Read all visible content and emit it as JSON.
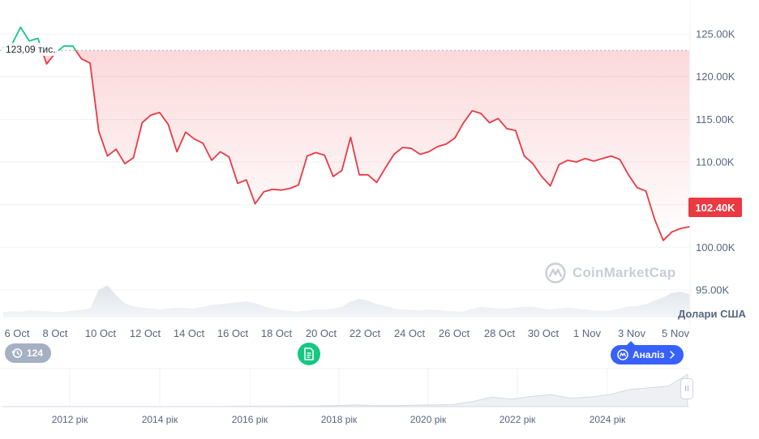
{
  "chart_data": {
    "type": "line",
    "title": "",
    "xlabel": "",
    "ylabel": "Долари США",
    "ylim": [
      91000,
      129000
    ],
    "y_ticks": [
      "125.00K",
      "120.00K",
      "115.00K",
      "110.00K",
      "105.00K",
      "100.00K",
      "95.00K"
    ],
    "y_tick_values": [
      125000,
      120000,
      115000,
      110000,
      105000,
      100000,
      95000
    ],
    "x_ticks": [
      "6 Oct",
      "8 Oct",
      "10 Oct",
      "12 Oct",
      "14 Oct",
      "16 Oct",
      "18 Oct",
      "20 Oct",
      "22 Oct",
      "24 Oct",
      "26 Oct",
      "28 Oct",
      "30 Oct",
      "1 Nov",
      "3 Nov",
      "5 Nov"
    ],
    "reference_value": 123090,
    "reference_label": "123,09 тис.",
    "current_price_label": "102.40K",
    "series": [
      {
        "values": [
          123400,
          123800,
          125800,
          124200,
          124500,
          121500,
          122800,
          123600,
          123600,
          122100,
          121600,
          113600,
          110700,
          111500,
          109800,
          110500,
          114600,
          115500,
          115800,
          114400,
          111200,
          113500,
          112700,
          112200,
          110200,
          111200,
          110600,
          107500,
          107900,
          105100,
          106500,
          106800,
          106700,
          106900,
          107300,
          110700,
          111100,
          110800,
          108300,
          109000,
          112900,
          108500,
          108500,
          107600,
          109300,
          110900,
          111700,
          111600,
          110900,
          111200,
          111800,
          112100,
          112800,
          114600,
          116000,
          115700,
          114600,
          115100,
          113900,
          113700,
          110700,
          109800,
          108300,
          107200,
          109700,
          110200,
          110000,
          110400,
          110100,
          110400,
          110700,
          110300,
          108500,
          107000,
          106600,
          103300,
          100800,
          101800,
          102200,
          102400
        ]
      }
    ],
    "volume": [
      0.12,
      0.14,
      0.13,
      0.16,
      0.15,
      0.14,
      0.12,
      0.13,
      0.15,
      0.17,
      0.2,
      0.62,
      0.72,
      0.5,
      0.32,
      0.25,
      0.22,
      0.2,
      0.18,
      0.2,
      0.22,
      0.21,
      0.2,
      0.24,
      0.28,
      0.3,
      0.32,
      0.34,
      0.36,
      0.32,
      0.25,
      0.2,
      0.17,
      0.15,
      0.13,
      0.16,
      0.18,
      0.18,
      0.2,
      0.24,
      0.36,
      0.42,
      0.38,
      0.3,
      0.26,
      0.2,
      0.18,
      0.17,
      0.16,
      0.18,
      0.17,
      0.15,
      0.14,
      0.13,
      0.2,
      0.24,
      0.22,
      0.2,
      0.2,
      0.22,
      0.24,
      0.24,
      0.2,
      0.18,
      0.2,
      0.22,
      0.2,
      0.18,
      0.16,
      0.15,
      0.16,
      0.2,
      0.25,
      0.26,
      0.3,
      0.38,
      0.45,
      0.55,
      0.58,
      0.52
    ],
    "navigator": {
      "x_ticks": [
        "2012 рік",
        "2014 рік",
        "2016 рік",
        "2018 рік",
        "2020 рік",
        "2022 рік",
        "2024 рік"
      ],
      "values": [
        0,
        0,
        0,
        0,
        0,
        0,
        0,
        0,
        0,
        0,
        0,
        0,
        0.01,
        0.01,
        0.01,
        0.02,
        0.02,
        0.03,
        0.05,
        0.03,
        0.03,
        0.04,
        0.05,
        0.06,
        0.15,
        0.28,
        0.22,
        0.3,
        0.35,
        0.25,
        0.28,
        0.35,
        0.5,
        0.55,
        0.6,
        0.95
      ]
    }
  },
  "overlay": {
    "news_count": "124",
    "analysis_label": "Аналіз",
    "watermark_text": "CoinMarketCap",
    "scroll_handle_label": "II"
  },
  "colors": {
    "line": "#ea3943",
    "line_above_ref": "#16c784",
    "reference_line": "#a6b0c3",
    "grid": "#eff2f5",
    "volume": "#e6e9ee",
    "analysis": "#3861fb",
    "news": "#a6b0c3",
    "document": "#16c784"
  }
}
